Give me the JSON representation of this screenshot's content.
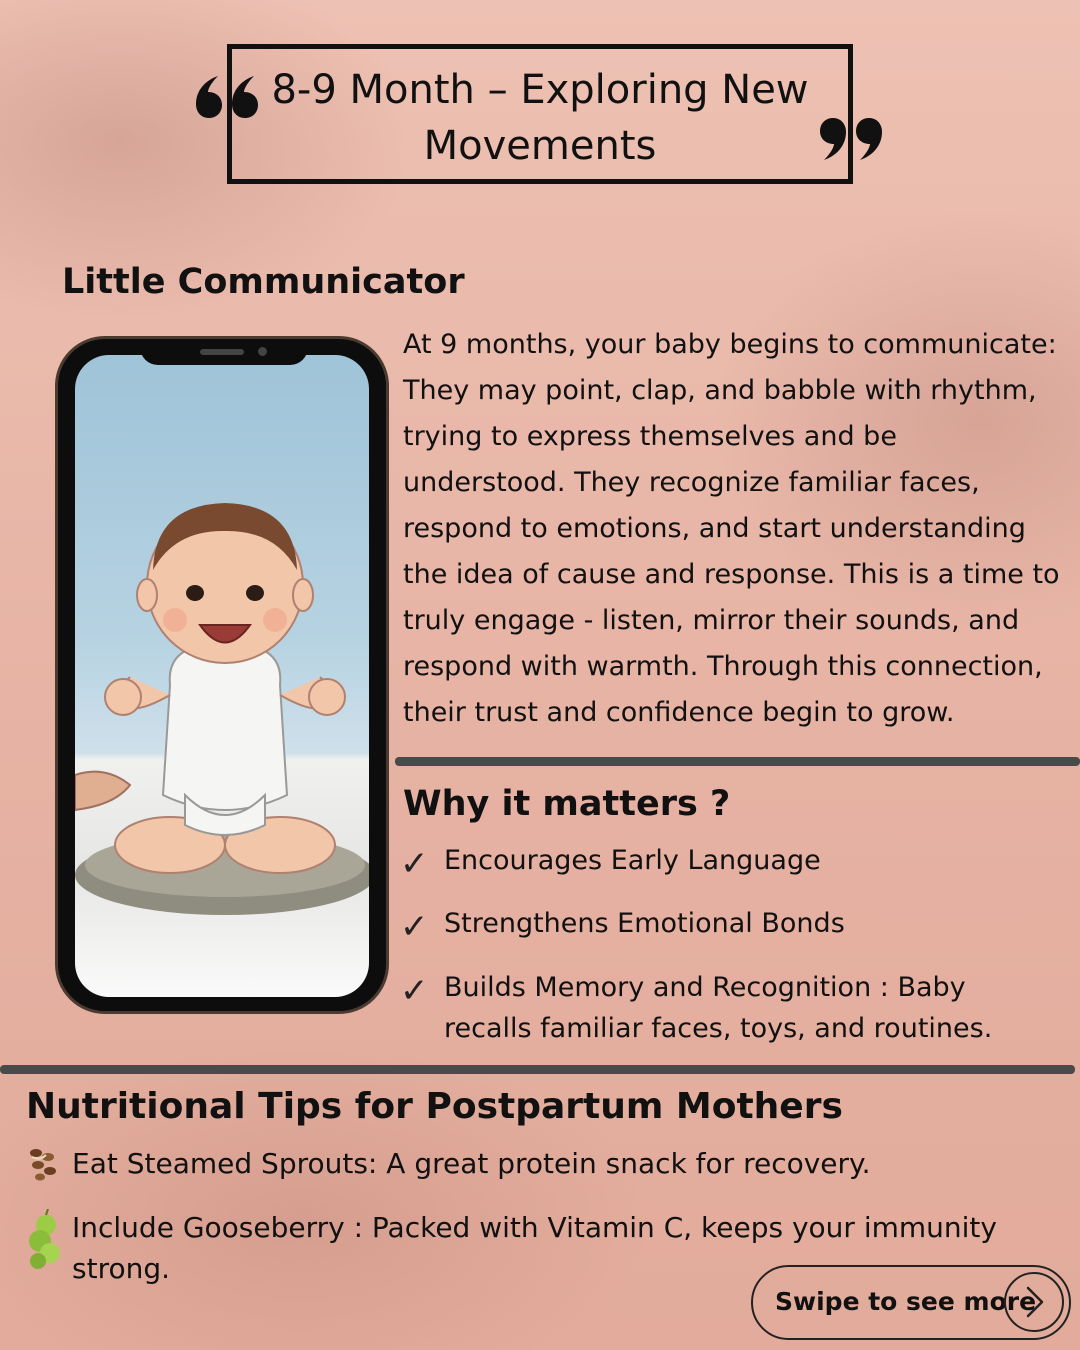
{
  "header": {
    "title": "8-9 Month – Exploring New Movements"
  },
  "section1": {
    "title": "Little Communicator",
    "body": "At 9 months, your baby begins to communicate: They may point, clap, and babble with rhythm, trying to express themselves and be understood. They recognize familiar faces, respond to emotions, and start understanding the idea of cause and response. This is a time to truly engage - listen, mirror their sounds, and respond with warmth. Through this connection, their trust and confidence begin to grow."
  },
  "why": {
    "title": "Why it matters ?",
    "items": [
      "Encourages Early Language",
      "Strengthens Emotional Bonds",
      "Builds Memory and Recognition : Baby recalls familiar faces, toys, and routines."
    ]
  },
  "nutrition": {
    "title": "Nutritional Tips for Postpartum Mothers",
    "tips": [
      "Eat Steamed Sprouts: A great protein snack for recovery.",
      "Include Gooseberry : Packed with Vitamin C, keeps your immunity strong."
    ],
    "icons": [
      "sprouts-icon",
      "gooseberry-icon"
    ]
  },
  "cta": {
    "label": "Swipe to see more"
  },
  "colors": {
    "background": "#eab8a9",
    "text": "#111111",
    "divider": "#4a4a4a"
  }
}
